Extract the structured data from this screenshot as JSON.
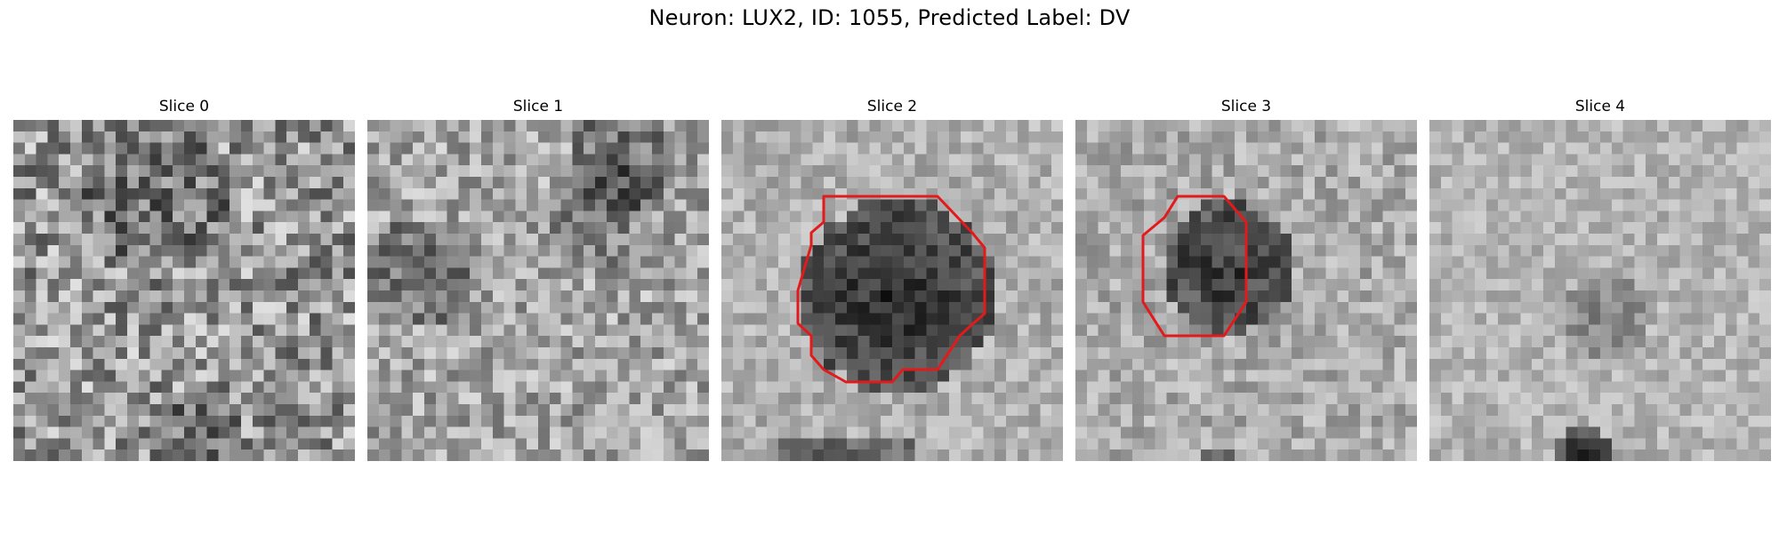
{
  "figure": {
    "title": "Neuron: LUX2, ID: 1055, Predicted Label: DV",
    "contour_color": "#e31a1c",
    "panels": [
      {
        "title": "Slice 0",
        "has_contour": false
      },
      {
        "title": "Slice 1",
        "has_contour": false
      },
      {
        "title": "Slice 2",
        "has_contour": true
      },
      {
        "title": "Slice 3",
        "has_contour": true
      },
      {
        "title": "Slice 4",
        "has_contour": false
      }
    ]
  }
}
